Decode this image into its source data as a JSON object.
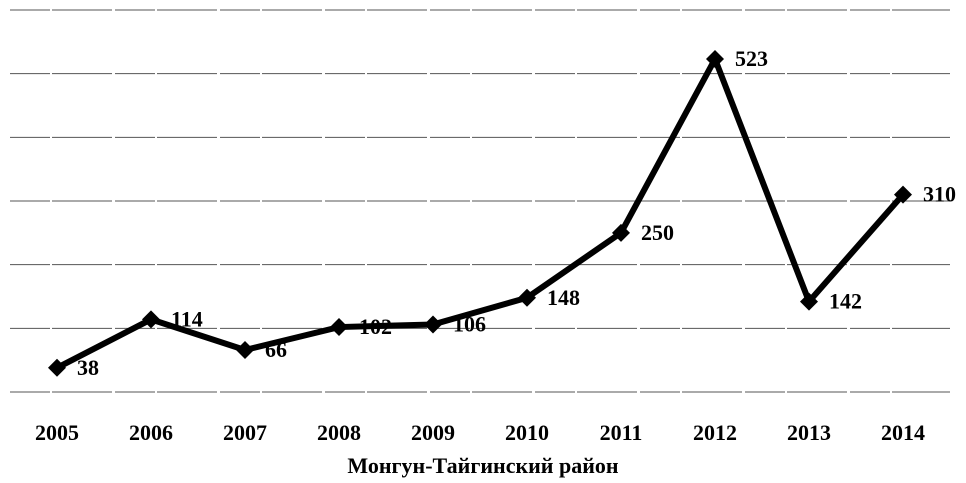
{
  "chart_data": {
    "type": "line",
    "categories": [
      "2005",
      "2006",
      "2007",
      "2008",
      "2009",
      "2010",
      "2011",
      "2012",
      "2013",
      "2014"
    ],
    "values": [
      38,
      114,
      66,
      102,
      106,
      148,
      250,
      523,
      142,
      310
    ],
    "color": "#000000",
    "xlabel": "Монгун-Тайгинский район",
    "ylim": [
      0,
      600
    ],
    "yticks": [
      0,
      100,
      200,
      300,
      400,
      500,
      600
    ],
    "grid": true
  }
}
